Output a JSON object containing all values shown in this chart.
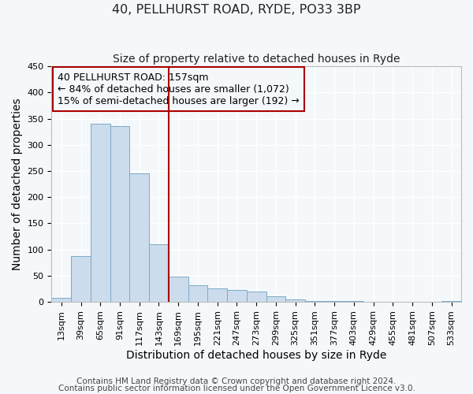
{
  "title": "40, PELLHURST ROAD, RYDE, PO33 3BP",
  "subtitle": "Size of property relative to detached houses in Ryde",
  "xlabel": "Distribution of detached houses by size in Ryde",
  "ylabel": "Number of detached properties",
  "bin_labels": [
    "13sqm",
    "39sqm",
    "65sqm",
    "91sqm",
    "117sqm",
    "143sqm",
    "169sqm",
    "195sqm",
    "221sqm",
    "247sqm",
    "273sqm",
    "299sqm",
    "325sqm",
    "351sqm",
    "377sqm",
    "403sqm",
    "429sqm",
    "455sqm",
    "481sqm",
    "507sqm",
    "533sqm"
  ],
  "bar_values": [
    7,
    88,
    340,
    335,
    246,
    110,
    49,
    31,
    26,
    22,
    20,
    10,
    5,
    2,
    1,
    1,
    0,
    0,
    0,
    0,
    1
  ],
  "bar_color": "#ccdcec",
  "bar_edge_color": "#7aaac8",
  "vline_x": 5.5,
  "vline_color": "#aa0000",
  "annotation_text": "40 PELLHURST ROAD: 157sqm\n← 84% of detached houses are smaller (1,072)\n15% of semi-detached houses are larger (192) →",
  "annotation_box_color": "#aa0000",
  "annotation_text_color": "#000000",
  "ylim": [
    0,
    450
  ],
  "footer_line1": "Contains HM Land Registry data © Crown copyright and database right 2024.",
  "footer_line2": "Contains public sector information licensed under the Open Government Licence v3.0.",
  "background_color": "#f5f8fb",
  "plot_bg_color": "#f5f8fb",
  "grid_color": "#ffffff",
  "title_fontsize": 11.5,
  "subtitle_fontsize": 10,
  "axis_label_fontsize": 10,
  "tick_fontsize": 8,
  "annotation_fontsize": 9,
  "footer_fontsize": 7.5
}
